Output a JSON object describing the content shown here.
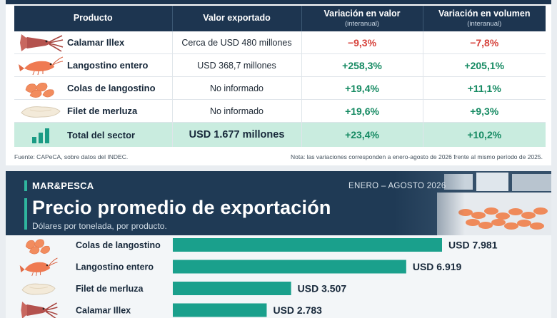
{
  "table": {
    "headers": [
      {
        "label": "Producto",
        "sub": ""
      },
      {
        "label": "Valor exportado",
        "sub": ""
      },
      {
        "label": "Variación en valor",
        "sub": "(interanual)"
      },
      {
        "label": "Variación en volumen",
        "sub": "(interanual)"
      }
    ],
    "rows": [
      {
        "icon": "squid-icon",
        "product": "Calamar Illex",
        "value": "Cerca de USD 480 millones",
        "var_value": "−9,3%",
        "var_volume": "−7,8%",
        "sign": "neg"
      },
      {
        "icon": "prawn-icon",
        "product": "Langostino entero",
        "value": "USD 368,7 millones",
        "var_value": "+258,3%",
        "var_volume": "+205,1%",
        "sign": "pos"
      },
      {
        "icon": "shrimp-tails-icon",
        "product": "Colas de langostino",
        "value": "No informado",
        "var_value": "+19,4%",
        "var_volume": "+11,1%",
        "sign": "pos"
      },
      {
        "icon": "hake-fillet-icon",
        "product": "Filet de merluza",
        "value": "No informado",
        "var_value": "+19,6%",
        "var_volume": "+9,3%",
        "sign": "pos"
      }
    ],
    "total": {
      "icon": "bar-chart-icon",
      "product": "Total del sector",
      "value": "USD 1.677 millones",
      "var_value": "+23,4%",
      "var_volume": "+10,2%"
    },
    "source": "Fuente: CAPeCA, sobre datos del INDEC.",
    "note": "Nota: las variaciones corresponden a enero-agosto de 2026 frente al mismo período de 2025."
  },
  "chart_header": {
    "brand": "MAR&PESCA",
    "period": "ENERO – AGOSTO 2026",
    "title": "Precio promedio de exportación",
    "subtitle": "Dólares por tonelada, por producto."
  },
  "chart_data": {
    "type": "bar",
    "orientation": "horizontal",
    "title": "Precio promedio de exportación",
    "subtitle": "Dólares por tonelada, por producto.",
    "categories": [
      "Colas de langostino",
      "Langostino entero",
      "Filet de merluza",
      "Calamar Illex"
    ],
    "values": [
      7981,
      6919,
      3507,
      2783
    ],
    "data_labels": [
      "USD 7.981",
      "USD 6.919",
      "USD 3.507",
      "USD 2.783"
    ],
    "icons": [
      "shrimp-tails-icon",
      "prawn-icon",
      "hake-fillet-icon",
      "squid-icon"
    ],
    "bar_color": "#1aa08c",
    "xlim": [
      0,
      7981
    ]
  },
  "colors": {
    "navy": "#1d3550",
    "accent": "#2fb59e",
    "negative": "#d6413a",
    "positive": "#158a62",
    "total_row": "#c9ecdf"
  }
}
